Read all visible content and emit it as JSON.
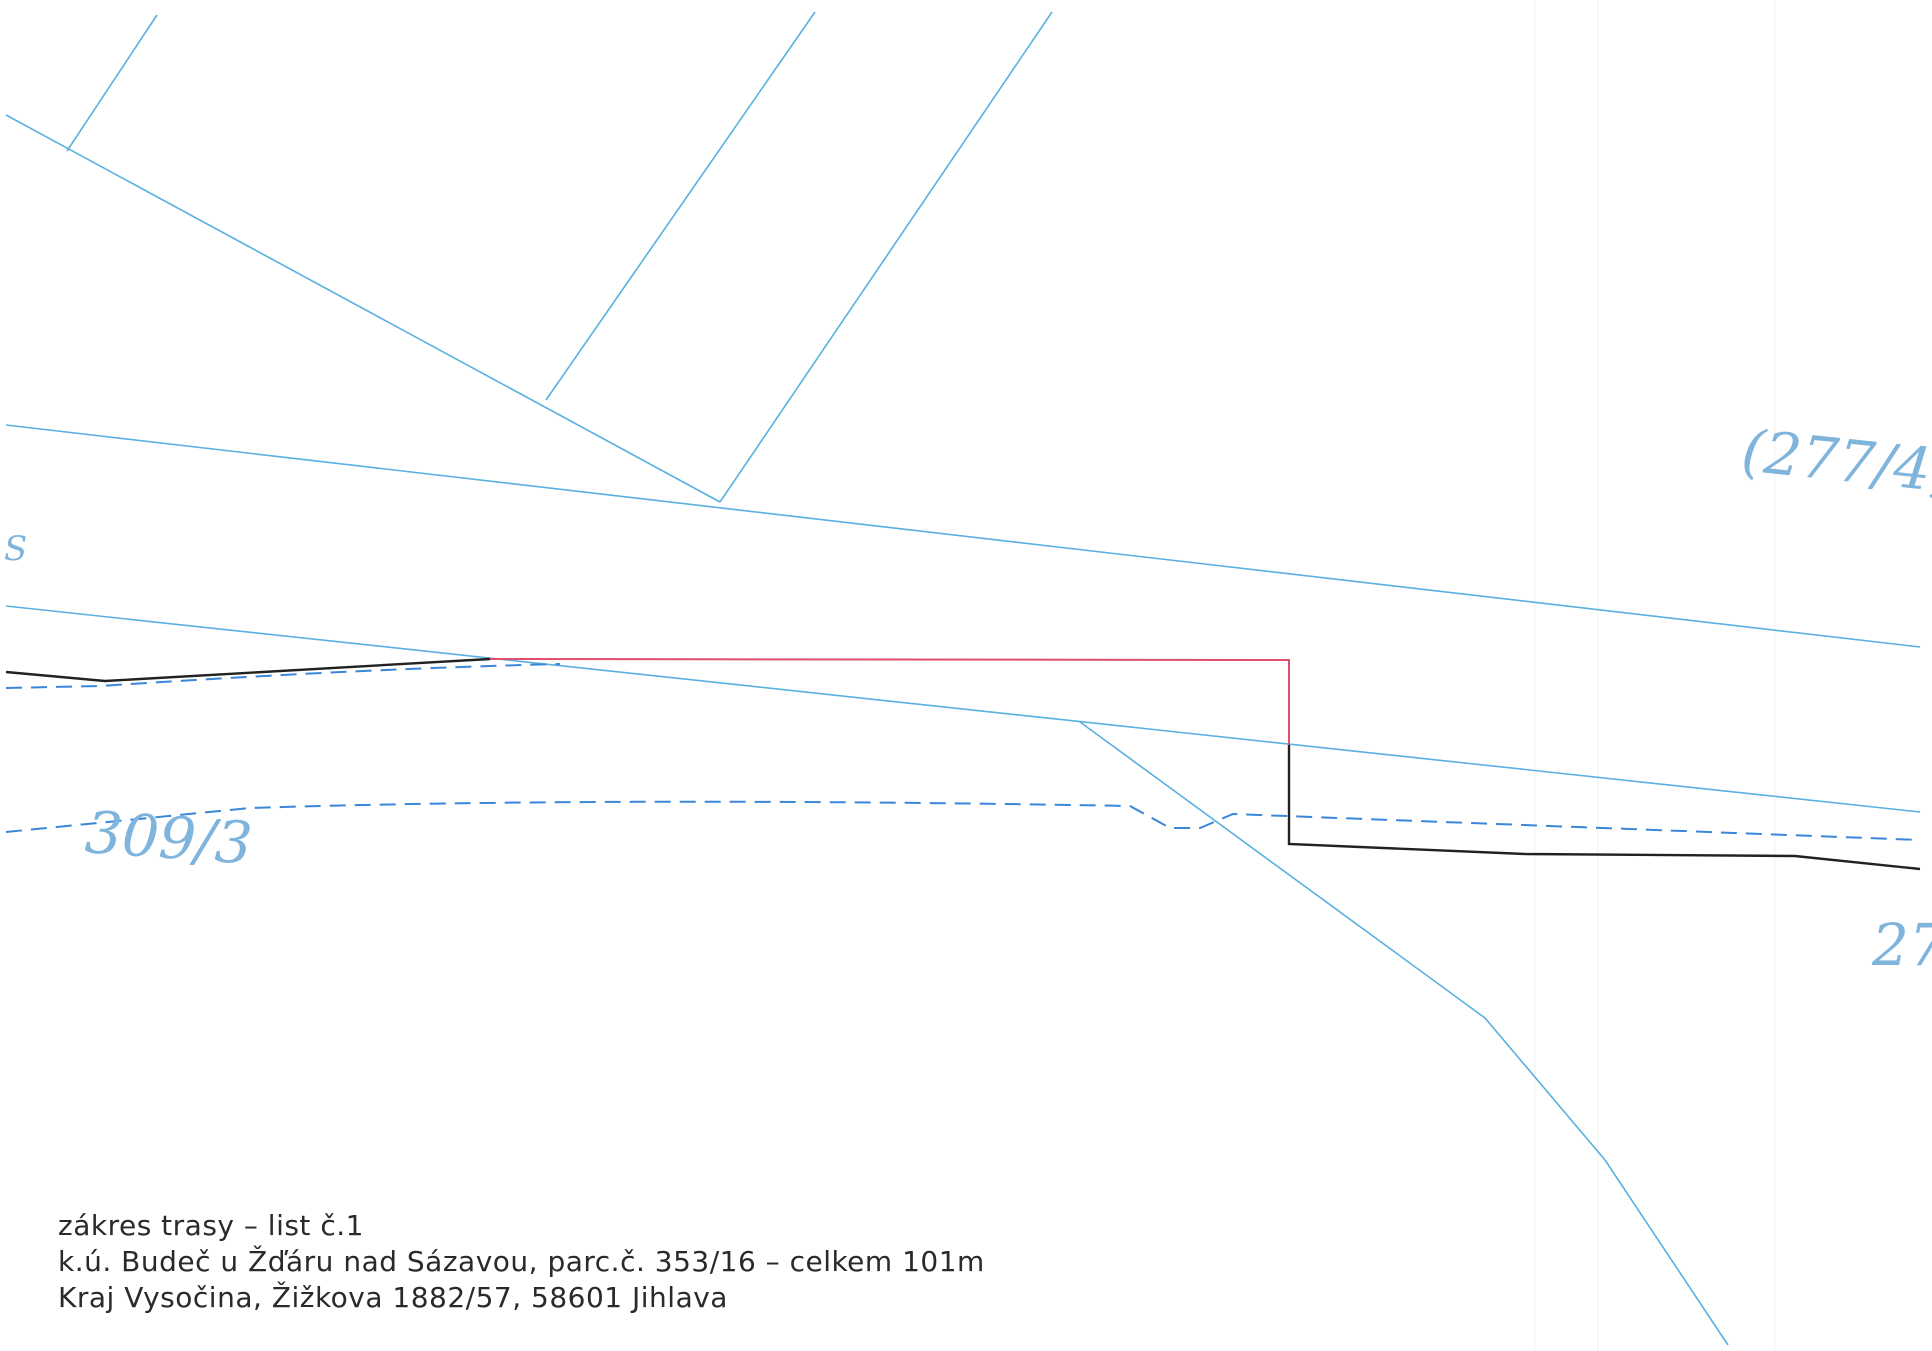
{
  "map": {
    "parcel_labels": {
      "top_right": "(277/4,",
      "left": "309/3",
      "right_edge": "27",
      "left_edge": "S"
    },
    "colors": {
      "parcel_lines": "#5ab0e0",
      "dashed_lines": "#3a86d8",
      "route_existing": "#222222",
      "route_new": "#e0506e",
      "labels": "#7fb4dc"
    }
  },
  "caption": {
    "line1": "zákres trasy – list č.1",
    "line2": "k.ú. Budeč u Žďáru nad Sázavou, parc.č. 353/16 – celkem 101m",
    "line3": "Kraj Vysočina, Žižkova 1882/57, 58601 Jihlava"
  }
}
